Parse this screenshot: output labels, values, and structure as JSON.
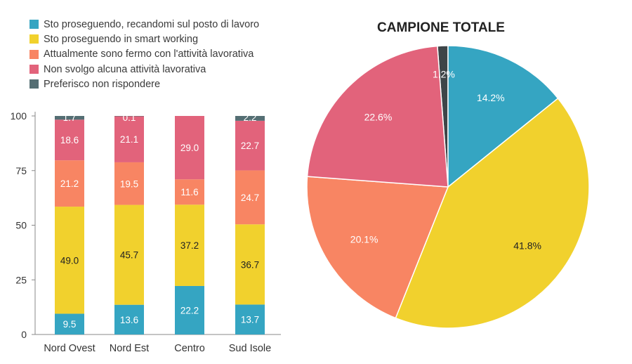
{
  "legend": [
    {
      "label": "Sto proseguendo, recandomi sul posto di lavoro",
      "color": "#35a5c2"
    },
    {
      "label": "Sto proseguendo in smart working",
      "color": "#f1d12d"
    },
    {
      "label": "Attualmente sono fermo con l'attività lavorativa",
      "color": "#f88563"
    },
    {
      "label": "Non svolgo alcuna attività lavorativa",
      "color": "#e2637b"
    },
    {
      "label": "Preferisco non rispondere",
      "color": "#546e73"
    }
  ],
  "chart_data": [
    {
      "type": "bar",
      "stacked": true,
      "categories": [
        "Nord Ovest",
        "Nord Est",
        "Centro",
        "Sud Isole"
      ],
      "ylim": [
        0,
        100
      ],
      "yticks": [
        "0",
        "25",
        "50",
        "75",
        "100"
      ],
      "series": [
        {
          "name": "Sto proseguendo, recandomi sul posto di lavoro",
          "color": "#35a5c2",
          "values": [
            9.5,
            13.6,
            22.2,
            13.7
          ],
          "labels": [
            "9.5",
            "13.6",
            "22.2",
            "13.7"
          ]
        },
        {
          "name": "Sto proseguendo in smart working",
          "color": "#f1d12d",
          "values": [
            49.0,
            45.7,
            37.2,
            36.7
          ],
          "labels": [
            "49.0",
            "45.7",
            "37.2",
            "36.7"
          ]
        },
        {
          "name": "Attualmente sono fermo con l'attività lavorativa",
          "color": "#f88563",
          "values": [
            21.2,
            19.5,
            11.6,
            24.7
          ],
          "labels": [
            "21.2",
            "19.5",
            "11.6",
            "24.7"
          ]
        },
        {
          "name": "Non svolgo alcuna attività lavorativa",
          "color": "#e2637b",
          "values": [
            18.6,
            21.1,
            29.0,
            22.7
          ],
          "labels": [
            "18.6",
            "21.1",
            "29.0",
            "22.7"
          ]
        },
        {
          "name": "Preferisco non rispondere",
          "color": "#546e73",
          "values": [
            1.7,
            0.1,
            0.0,
            2.2
          ],
          "labels": [
            "1.7",
            "0.1",
            "",
            "2.2"
          ]
        }
      ],
      "legend_position": "top-left"
    },
    {
      "type": "pie",
      "title": "CAMPIONE TOTALE",
      "slices": [
        {
          "name": "Sto proseguendo, recandomi sul posto di lavoro",
          "value": 14.2,
          "label": "14.2%",
          "color": "#35a5c2"
        },
        {
          "name": "Sto proseguendo in smart working",
          "value": 41.8,
          "label": "41.8%",
          "color": "#f1d12d"
        },
        {
          "name": "Attualmente sono fermo con l'attività lavorativa",
          "value": 20.1,
          "label": "20.1%",
          "color": "#f88563"
        },
        {
          "name": "Non svolgo alcuna attività lavorativa",
          "value": 22.6,
          "label": "22.6%",
          "color": "#e2637b"
        },
        {
          "name": "Preferisco non rispondere",
          "value": 1.2,
          "label": "1.2%",
          "color": "#3e4548"
        }
      ]
    }
  ]
}
